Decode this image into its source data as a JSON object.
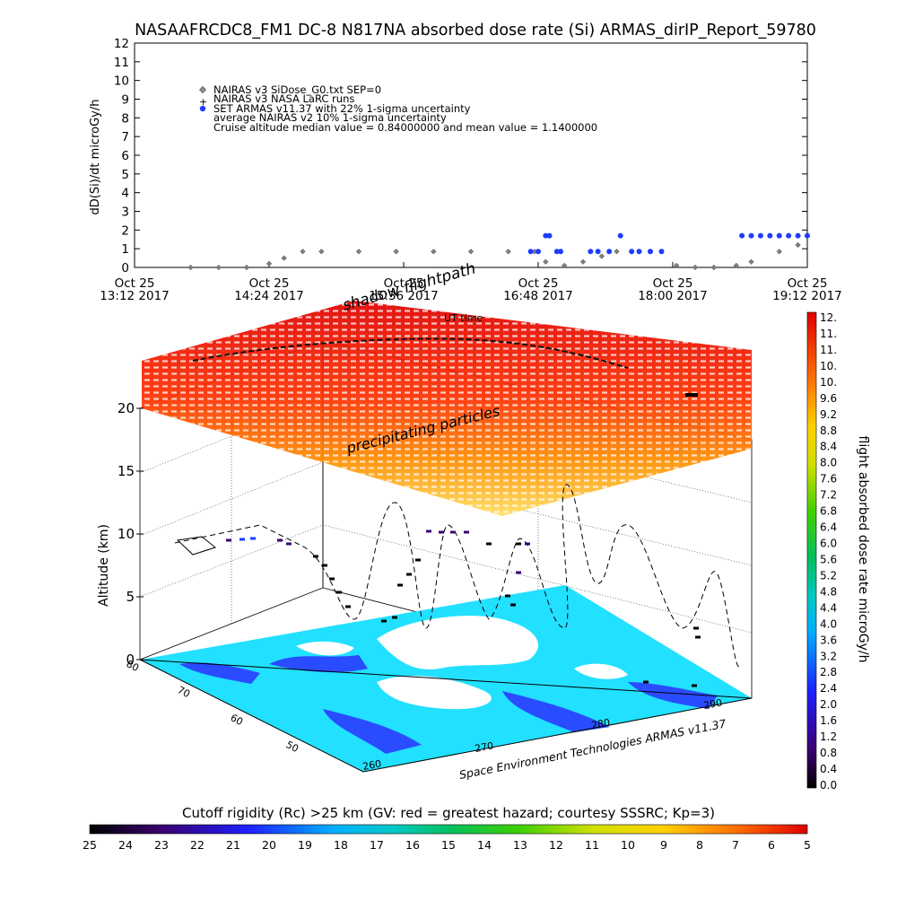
{
  "page_title": "NASAAFRCDC8_FM1 DC-8   N817NA absorbed dose rate (Si) ARMAS_dirIP_Report_59780",
  "chart_data": [
    {
      "type": "scatter",
      "ylabel": "dD(Si)/dt microGy/h",
      "ylim": [
        0,
        12
      ],
      "yticks": [
        "0",
        "1",
        "2",
        "3",
        "4",
        "5",
        "6",
        "7",
        "8",
        "9",
        "10",
        "11",
        "12"
      ],
      "xlim": [
        0,
        360
      ],
      "xticks": [
        {
          "line1": "Oct 25",
          "line2": "13:12 2017"
        },
        {
          "line1": "Oct 25",
          "line2": "14:24 2017"
        },
        {
          "line1": "Oct 25",
          "line2": "15:36 2017"
        },
        {
          "line1": "Oct 25",
          "line2": "16:48 2017"
        },
        {
          "line1": "Oct 25",
          "line2": "18:00 2017"
        },
        {
          "line1": "Oct 25",
          "line2": "19:12 2017"
        }
      ],
      "legend": [
        {
          "symbol": "diamond",
          "text": "NAIRAS v3 SiDose_G0.txt SEP=0"
        },
        {
          "symbol": "plus",
          "text": "NAIRAS v3 NASA LaRC runs"
        },
        {
          "symbol": "blue-dot",
          "text": "SET ARMAS v11.37 with 22% 1-sigma uncertainty"
        },
        {
          "symbol": "none",
          "text": "average NAIRAS v2 10% 1-sigma uncertainty"
        },
        {
          "symbol": "none",
          "text": "Cruise altitude median value = 0.84000000 and mean value = 1.1400000"
        }
      ],
      "series": [
        {
          "name": "NAIRAS v3 SiDose_G0.txt SEP=0",
          "color": "#808080",
          "x": [
            30,
            45,
            60,
            72,
            80,
            90,
            100,
            120,
            140,
            160,
            180,
            200,
            214,
            220,
            230,
            240,
            250,
            258,
            266,
            276,
            290,
            300,
            310,
            322,
            330,
            345,
            355
          ],
          "y": [
            0,
            0,
            0,
            0.2,
            0.5,
            0.85,
            0.85,
            0.85,
            0.85,
            0.85,
            0.85,
            0.85,
            0.85,
            0.3,
            0.1,
            0.3,
            0.6,
            0.85,
            0.85,
            0.85,
            0.1,
            0,
            0,
            0.1,
            0.3,
            0.85,
            1.2
          ]
        },
        {
          "name": "SET ARMAS v11.37 with 22% 1-sigma uncertainty",
          "color": "#1e3cff",
          "x": [
            212,
            216,
            220,
            222,
            226,
            228,
            244,
            248,
            254,
            260,
            266,
            270,
            276,
            282,
            325,
            330,
            335,
            340,
            345,
            350,
            355,
            360
          ],
          "y": [
            0.85,
            0.85,
            1.7,
            1.7,
            0.85,
            0.85,
            0.85,
            0.85,
            0.85,
            1.7,
            0.85,
            0.85,
            0.85,
            0.85,
            1.7,
            1.7,
            1.7,
            1.7,
            1.7,
            1.7,
            1.7,
            1.7
          ]
        }
      ]
    },
    {
      "type": "3d-flight-map",
      "title_top": "shadow flightpath",
      "subtitle_top": "UT time",
      "middle_label": "precipitating particles",
      "zlabel": "Altitude (km)",
      "zticks": [
        "0",
        "5",
        "10",
        "15",
        "20"
      ],
      "lat_ticks": [
        "80",
        "70",
        "60",
        "50"
      ],
      "lon_ticks": [
        "260",
        "270",
        "280",
        "290"
      ],
      "credit": "Space Environment Technologies ARMAS v11.37",
      "colorbar_label": "flight absorbed dose rate microGy/h",
      "colorbar_ticks": [
        "12.",
        "11.",
        "11.",
        "10.",
        "10.",
        "9.6",
        "9.2",
        "8.8",
        "8.4",
        "8.0",
        "7.6",
        "7.2",
        "6.8",
        "6.4",
        "6.0",
        "5.6",
        "5.2",
        "4.8",
        "4.4",
        "4.0",
        "3.6",
        "3.2",
        "2.8",
        "2.4",
        "2.0",
        "1.6",
        "1.2",
        "0.8",
        "0.4",
        "0.0"
      ]
    },
    {
      "type": "colorbar",
      "title": "Cutoff rigidity (Rc) >25 km (GV: red = greatest hazard; courtesy SSSRC; Kp=3)",
      "ticks": [
        "25",
        "24",
        "23",
        "22",
        "21",
        "20",
        "19",
        "18",
        "17",
        "16",
        "15",
        "14",
        "13",
        "12",
        "11",
        "10",
        "9",
        "8",
        "7",
        "6",
        "5"
      ]
    }
  ],
  "colors": {
    "dose_palette": [
      "#000000",
      "#3a0070",
      "#1e1eff",
      "#00a0ff",
      "#00d0d0",
      "#00c060",
      "#30d000",
      "#c8e000",
      "#ffe000",
      "#ff9000",
      "#ff3000",
      "#e00000"
    ],
    "ground": "#22e0ff",
    "land": "#ffffff"
  }
}
